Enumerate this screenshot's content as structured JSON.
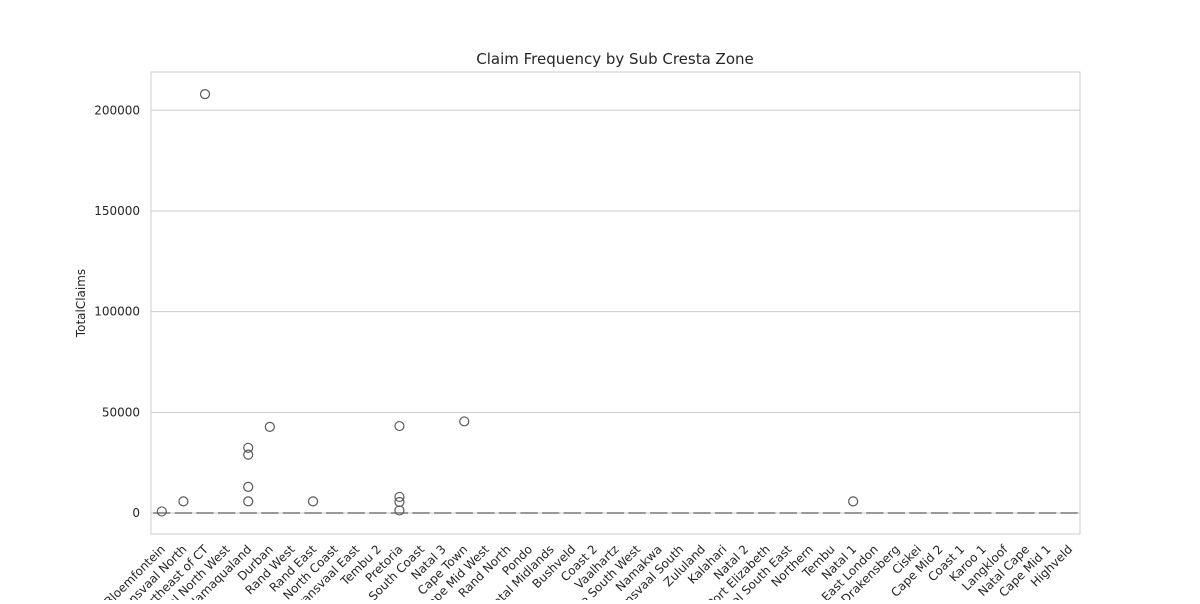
{
  "chart_data": {
    "type": "box",
    "title": "Claim Frequency by Sub Cresta Zone",
    "xlabel": "",
    "ylabel": "TotalClaims",
    "ylim": [
      -10400,
      219000
    ],
    "yticks": [
      0,
      50000,
      100000,
      150000,
      200000
    ],
    "grid": "horizontal",
    "box_color": "#999999",
    "outlier_color": "#595959",
    "categories": [
      "Bloemfontein",
      "Transvaal North",
      "Northeast of CT",
      "Natal North West",
      "Namaqualand",
      "Durban",
      "Rand West",
      "Rand East",
      "North Coast",
      "Transvaal East",
      "Tembu 2",
      "Pretoria",
      "South Coast",
      "Natal 3",
      "Cape Town",
      "Cape Mid West",
      "Rand North",
      "Pondo",
      "Natal Midlands",
      "Bushveld",
      "Coast 2",
      "Vaalhartz",
      "Cape South West",
      "Namakwa",
      "Transvaal South",
      "Zululand",
      "Kalahari",
      "Natal 2",
      "Port Elizabeth",
      "Natal South East",
      "Northern",
      "Tembu",
      "Natal 1",
      "East London",
      "Drakensberg",
      "Ciskei",
      "Cape Mid 2",
      "Coast 1",
      "Karoo 1",
      "Langkloof",
      "Natal Cape",
      "Cape Mid 1",
      "Highveld"
    ],
    "medians": [
      0,
      0,
      0,
      0,
      0,
      0,
      0,
      0,
      0,
      0,
      0,
      0,
      0,
      0,
      0,
      0,
      0,
      0,
      0,
      0,
      0,
      0,
      0,
      0,
      0,
      0,
      0,
      0,
      0,
      0,
      0,
      0,
      0,
      0,
      0,
      0,
      0,
      0,
      0,
      0,
      0,
      0,
      0
    ],
    "outliers": [
      {
        "category": "Bloemfontein",
        "values": [
          800
        ]
      },
      {
        "category": "Transvaal North",
        "values": [
          5800
        ]
      },
      {
        "category": "Northeast of CT",
        "values": [
          208000
        ]
      },
      {
        "category": "Namaqualand",
        "values": [
          32400,
          29000,
          13000,
          5800
        ]
      },
      {
        "category": "Durban",
        "values": [
          42800
        ]
      },
      {
        "category": "Rand East",
        "values": [
          5800
        ]
      },
      {
        "category": "Pretoria",
        "values": [
          43200,
          8000,
          5500,
          1300
        ]
      },
      {
        "category": "Cape Town",
        "values": [
          45500
        ]
      },
      {
        "category": "Natal 1",
        "values": [
          5800
        ]
      }
    ]
  }
}
